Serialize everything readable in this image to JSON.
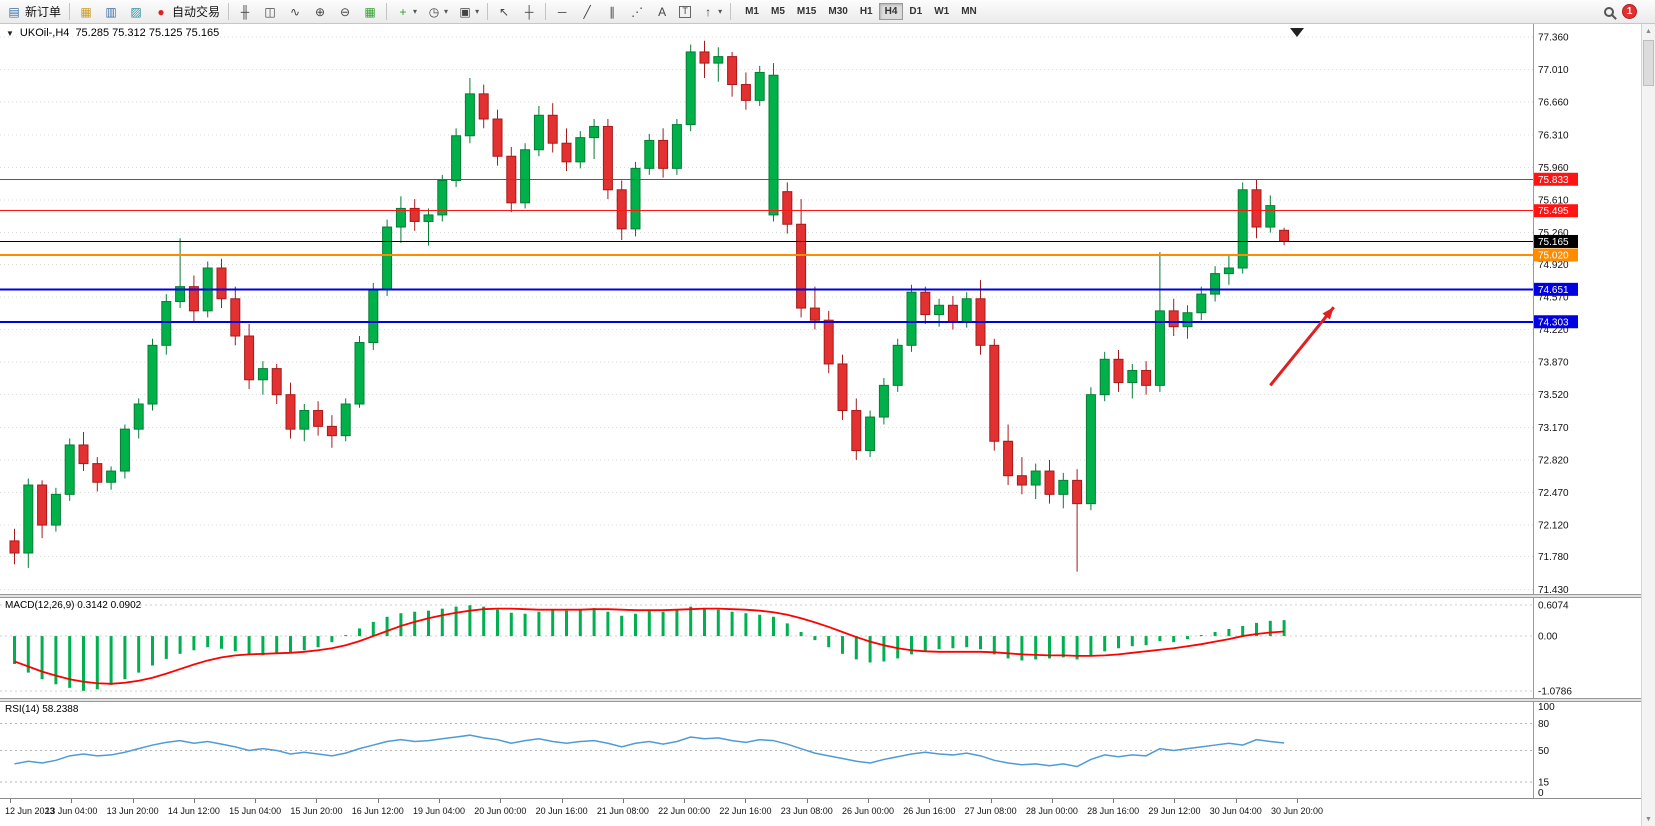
{
  "toolbar": {
    "new_order_label": "新订单",
    "autotrading_label": "自动交易",
    "timeframes": [
      "M1",
      "M5",
      "M15",
      "M30",
      "H1",
      "H4",
      "D1",
      "W1",
      "MN"
    ],
    "active_timeframe": "H4",
    "notification_count": "1",
    "icons": {
      "new_order": "▤",
      "print": "▦",
      "preview": "▥",
      "data_window": "▨",
      "autotrading_dot": "●",
      "chart_bars": "╫",
      "chart_candles": "◫",
      "chart_line": "∿",
      "zoom_in": "⊕",
      "zoom_out": "⊖",
      "tile_windows": "▦",
      "new_chart": "+",
      "periods": "◷",
      "templates": "▣",
      "cursor": "↖",
      "crosshair": "┼",
      "hline": "─",
      "trendline": "╱",
      "channel": "∥",
      "fibonacci": "⋰",
      "text": "A",
      "text_label": "T",
      "arrows": "↑",
      "caret": "▾",
      "scroll_up": "▲",
      "scroll_down": "▼"
    }
  },
  "chart": {
    "collapse_marker": "▼",
    "symbol_period": "UKOil-,H4",
    "ohlc_text": "75.285 75.312 75.125 75.165"
  },
  "colors": {
    "up": "#00b14a",
    "up_border": "#067d36",
    "down": "#e33030",
    "down_border": "#a61b1b",
    "grid": "#dcdcdc",
    "axis_text": "#111111",
    "macd_hist": "#00b050",
    "macd_signal": "#ff0000",
    "rsi_line": "#4f9bd6",
    "arrow": "#e02020"
  },
  "chart_data": [
    {
      "type": "candlestick",
      "symbol": "UKOil-",
      "timeframe": "H4",
      "current_ohlc": {
        "open": 75.285,
        "high": 75.312,
        "low": 75.125,
        "close": 75.165
      },
      "ylim": [
        71.38,
        77.5
      ],
      "y_ticks": [
        "77.360",
        "77.010",
        "76.660",
        "76.310",
        "75.960",
        "75.610",
        "75.260",
        "74.920",
        "74.570",
        "74.220",
        "73.870",
        "73.520",
        "73.170",
        "72.820",
        "72.470",
        "72.120",
        "71.780",
        "71.430"
      ],
      "x_labels": [
        "12 Jun 2023",
        "13 Jun 04:00",
        "13 Jun 20:00",
        "14 Jun 12:00",
        "15 Jun 04:00",
        "15 Jun 20:00",
        "16 Jun 12:00",
        "19 Jun 04:00",
        "20 Jun 00:00",
        "20 Jun 16:00",
        "21 Jun 08:00",
        "22 Jun 00:00",
        "22 Jun 16:00",
        "23 Jun 08:00",
        "26 Jun 00:00",
        "26 Jun 16:00",
        "27 Jun 08:00",
        "28 Jun 00:00",
        "28 Jun 16:00",
        "29 Jun 12:00",
        "30 Jun 04:00",
        "30 Jun 20:00"
      ],
      "horizontal_lines": [
        {
          "price": 75.833,
          "label": "75.833",
          "color": "#ff1414",
          "width": 1
        },
        {
          "price": 75.495,
          "label": "75.495",
          "color": "#ff1414",
          "width": 1
        },
        {
          "price": 75.02,
          "label": "75.020",
          "color": "#ff8c00",
          "width": 2
        },
        {
          "price": 74.651,
          "label": "74.651",
          "color": "#0000e0",
          "width": 2
        },
        {
          "price": 74.303,
          "label": "74.303",
          "color": "#0000e0",
          "width": 2
        }
      ],
      "current_price_line": {
        "price": 75.165,
        "label": "75.165",
        "color": "#000000"
      },
      "arrow_annotation": {
        "from_index": 91,
        "from_price": 73.62,
        "to_index": 95.6,
        "to_price": 74.46,
        "color": "#e02020"
      },
      "candles": [
        [
          71.95,
          72.08,
          71.7,
          71.82
        ],
        [
          71.82,
          72.62,
          71.66,
          72.55
        ],
        [
          72.55,
          72.6,
          71.98,
          72.12
        ],
        [
          72.12,
          72.52,
          72.05,
          72.45
        ],
        [
          72.45,
          73.05,
          72.38,
          72.98
        ],
        [
          72.98,
          73.12,
          72.7,
          72.78
        ],
        [
          72.78,
          72.85,
          72.48,
          72.58
        ],
        [
          72.58,
          72.75,
          72.5,
          72.7
        ],
        [
          72.7,
          73.2,
          72.62,
          73.15
        ],
        [
          73.15,
          73.48,
          73.05,
          73.42
        ],
        [
          73.42,
          74.12,
          73.35,
          74.05
        ],
        [
          74.05,
          74.6,
          73.95,
          74.52
        ],
        [
          74.52,
          75.2,
          74.45,
          74.68
        ],
        [
          74.68,
          74.8,
          74.3,
          74.42
        ],
        [
          74.42,
          74.95,
          74.35,
          74.88
        ],
        [
          74.88,
          74.98,
          74.45,
          74.55
        ],
        [
          74.55,
          74.68,
          74.05,
          74.15
        ],
        [
          74.15,
          74.28,
          73.58,
          73.68
        ],
        [
          73.68,
          73.88,
          73.52,
          73.8
        ],
        [
          73.8,
          73.85,
          73.42,
          73.52
        ],
        [
          73.52,
          73.65,
          73.05,
          73.15
        ],
        [
          73.15,
          73.42,
          73.02,
          73.35
        ],
        [
          73.35,
          73.45,
          73.08,
          73.18
        ],
        [
          73.18,
          73.3,
          72.95,
          73.08
        ],
        [
          73.08,
          73.48,
          73.02,
          73.42
        ],
        [
          73.42,
          74.15,
          73.38,
          74.08
        ],
        [
          74.08,
          74.72,
          74.0,
          74.65
        ],
        [
          74.65,
          75.4,
          74.58,
          75.32
        ],
        [
          75.32,
          75.65,
          75.15,
          75.52
        ],
        [
          75.52,
          75.62,
          75.28,
          75.38
        ],
        [
          75.38,
          75.52,
          75.12,
          75.45
        ],
        [
          75.45,
          75.88,
          75.38,
          75.82
        ],
        [
          75.82,
          76.38,
          75.75,
          76.3
        ],
        [
          76.3,
          76.92,
          76.22,
          76.75
        ],
        [
          76.75,
          76.85,
          76.38,
          76.48
        ],
        [
          76.48,
          76.58,
          75.98,
          76.08
        ],
        [
          76.08,
          76.18,
          75.48,
          75.58
        ],
        [
          75.58,
          76.22,
          75.52,
          76.15
        ],
        [
          76.15,
          76.62,
          76.08,
          76.52
        ],
        [
          76.52,
          76.65,
          76.12,
          76.22
        ],
        [
          76.22,
          76.38,
          75.92,
          76.02
        ],
        [
          76.02,
          76.35,
          75.95,
          76.28
        ],
        [
          76.28,
          76.48,
          76.05,
          76.4
        ],
        [
          76.4,
          76.48,
          75.62,
          75.72
        ],
        [
          75.72,
          75.82,
          75.18,
          75.3
        ],
        [
          75.3,
          76.02,
          75.22,
          75.95
        ],
        [
          75.95,
          76.32,
          75.88,
          76.25
        ],
        [
          76.25,
          76.38,
          75.85,
          75.95
        ],
        [
          75.95,
          76.48,
          75.88,
          76.42
        ],
        [
          76.42,
          77.28,
          76.35,
          77.2
        ],
        [
          77.2,
          77.32,
          76.92,
          77.08
        ],
        [
          77.08,
          77.25,
          76.88,
          77.15
        ],
        [
          77.15,
          77.2,
          76.72,
          76.85
        ],
        [
          76.85,
          76.98,
          76.58,
          76.68
        ],
        [
          76.68,
          77.05,
          76.62,
          76.98
        ],
        [
          75.45,
          77.08,
          75.38,
          76.95
        ],
        [
          75.7,
          75.8,
          75.25,
          75.35
        ],
        [
          75.35,
          75.62,
          74.35,
          74.45
        ],
        [
          74.45,
          74.68,
          74.22,
          74.32
        ],
        [
          74.32,
          74.42,
          73.75,
          73.85
        ],
        [
          73.85,
          73.95,
          73.25,
          73.35
        ],
        [
          73.35,
          73.48,
          72.82,
          72.92
        ],
        [
          72.92,
          73.35,
          72.85,
          73.28
        ],
        [
          73.28,
          73.7,
          73.2,
          73.62
        ],
        [
          73.62,
          74.12,
          73.55,
          74.05
        ],
        [
          74.05,
          74.7,
          73.98,
          74.62
        ],
        [
          74.62,
          74.68,
          74.28,
          74.38
        ],
        [
          74.38,
          74.55,
          74.25,
          74.48
        ],
        [
          74.48,
          74.58,
          74.22,
          74.3
        ],
        [
          74.3,
          74.62,
          74.24,
          74.55
        ],
        [
          74.55,
          74.75,
          73.95,
          74.05
        ],
        [
          74.05,
          74.12,
          72.92,
          73.02
        ],
        [
          73.02,
          73.2,
          72.55,
          72.65
        ],
        [
          72.65,
          72.85,
          72.45,
          72.55
        ],
        [
          72.55,
          72.78,
          72.4,
          72.7
        ],
        [
          72.7,
          72.82,
          72.35,
          72.45
        ],
        [
          72.45,
          72.68,
          72.3,
          72.6
        ],
        [
          72.6,
          72.72,
          71.62,
          72.35
        ],
        [
          72.35,
          73.6,
          72.28,
          73.52
        ],
        [
          73.52,
          73.98,
          73.45,
          73.9
        ],
        [
          73.9,
          74.0,
          73.55,
          73.65
        ],
        [
          73.65,
          73.85,
          73.48,
          73.78
        ],
        [
          73.78,
          73.88,
          73.52,
          73.62
        ],
        [
          73.62,
          75.05,
          73.55,
          74.42
        ],
        [
          74.42,
          74.55,
          74.15,
          74.25
        ],
        [
          74.25,
          74.48,
          74.12,
          74.4
        ],
        [
          74.4,
          74.68,
          74.32,
          74.6
        ],
        [
          74.6,
          74.9,
          74.52,
          74.82
        ],
        [
          74.82,
          75.02,
          74.7,
          74.88
        ],
        [
          74.88,
          75.8,
          74.82,
          75.72
        ],
        [
          75.72,
          75.833,
          75.2,
          75.32
        ],
        [
          75.32,
          75.66,
          75.26,
          75.55
        ],
        [
          75.285,
          75.312,
          75.125,
          75.165
        ]
      ]
    },
    {
      "type": "bar",
      "name": "MACD",
      "label": "MACD(12,26,9) 0.3142 0.0902",
      "params": "12,26,9",
      "main_value": 0.3142,
      "signal_value": 0.0902,
      "y_ticks": [
        "0.6074",
        "0.00",
        "-1.0786"
      ],
      "ylim": [
        -1.22,
        0.75
      ],
      "histogram_color": "#00b050",
      "signal_color": "#ff0000",
      "histogram": [
        -0.55,
        -0.72,
        -0.85,
        -0.95,
        -1.02,
        -1.0786,
        -1.05,
        -0.96,
        -0.85,
        -0.72,
        -0.58,
        -0.45,
        -0.35,
        -0.28,
        -0.22,
        -0.25,
        -0.3,
        -0.36,
        -0.38,
        -0.35,
        -0.32,
        -0.28,
        -0.22,
        -0.12,
        0.02,
        0.15,
        0.28,
        0.38,
        0.45,
        0.48,
        0.5,
        0.54,
        0.58,
        0.6074,
        0.58,
        0.52,
        0.46,
        0.44,
        0.48,
        0.52,
        0.5,
        0.52,
        0.55,
        0.48,
        0.4,
        0.44,
        0.5,
        0.48,
        0.52,
        0.58,
        0.55,
        0.52,
        0.48,
        0.45,
        0.42,
        0.38,
        0.25,
        0.08,
        -0.08,
        -0.22,
        -0.35,
        -0.46,
        -0.52,
        -0.5,
        -0.44,
        -0.36,
        -0.3,
        -0.26,
        -0.24,
        -0.22,
        -0.26,
        -0.36,
        -0.44,
        -0.48,
        -0.46,
        -0.44,
        -0.42,
        -0.46,
        -0.4,
        -0.3,
        -0.24,
        -0.2,
        -0.18,
        -0.1,
        -0.12,
        -0.06,
        0.02,
        0.08,
        0.14,
        0.2,
        0.26,
        0.3,
        0.3142
      ],
      "signal": [
        -0.5,
        -0.6,
        -0.7,
        -0.78,
        -0.85,
        -0.9,
        -0.93,
        -0.94,
        -0.92,
        -0.88,
        -0.82,
        -0.74,
        -0.65,
        -0.56,
        -0.48,
        -0.42,
        -0.38,
        -0.36,
        -0.35,
        -0.34,
        -0.33,
        -0.31,
        -0.28,
        -0.24,
        -0.18,
        -0.1,
        0.0,
        0.1,
        0.2,
        0.28,
        0.35,
        0.41,
        0.46,
        0.5,
        0.53,
        0.54,
        0.54,
        0.53,
        0.52,
        0.52,
        0.52,
        0.52,
        0.53,
        0.53,
        0.52,
        0.51,
        0.51,
        0.51,
        0.52,
        0.53,
        0.54,
        0.54,
        0.53,
        0.52,
        0.5,
        0.47,
        0.42,
        0.35,
        0.27,
        0.18,
        0.08,
        -0.02,
        -0.11,
        -0.18,
        -0.24,
        -0.28,
        -0.3,
        -0.31,
        -0.31,
        -0.31,
        -0.31,
        -0.32,
        -0.34,
        -0.36,
        -0.37,
        -0.38,
        -0.38,
        -0.39,
        -0.39,
        -0.38,
        -0.36,
        -0.33,
        -0.3,
        -0.27,
        -0.24,
        -0.2,
        -0.16,
        -0.11,
        -0.06,
        0.0,
        0.04,
        0.07,
        0.0902
      ]
    },
    {
      "type": "line",
      "name": "RSI",
      "label": "RSI(14) 58.2388",
      "period": 14,
      "current_value": 58.2388,
      "y_ticks": [
        "100",
        "80",
        "50",
        "15",
        "0"
      ],
      "levels": [
        80,
        50,
        15
      ],
      "ylim": [
        0,
        100
      ],
      "line_color": "#4f9bd6",
      "values": [
        35,
        38,
        36,
        39,
        44,
        46,
        44,
        45,
        48,
        52,
        56,
        59,
        61,
        58,
        60,
        57,
        54,
        50,
        52,
        50,
        46,
        48,
        46,
        44,
        47,
        52,
        56,
        60,
        62,
        60,
        61,
        63,
        65,
        67,
        64,
        62,
        58,
        61,
        63,
        60,
        58,
        60,
        61,
        58,
        54,
        58,
        60,
        57,
        60,
        65,
        63,
        64,
        61,
        59,
        62,
        61,
        57,
        52,
        47,
        44,
        41,
        38,
        36,
        40,
        43,
        46,
        48,
        46,
        45,
        47,
        44,
        39,
        36,
        34,
        35,
        33,
        35,
        32,
        40,
        45,
        43,
        45,
        44,
        52,
        50,
        52,
        54,
        56,
        58,
        56,
        62,
        60,
        58.2388
      ]
    }
  ]
}
